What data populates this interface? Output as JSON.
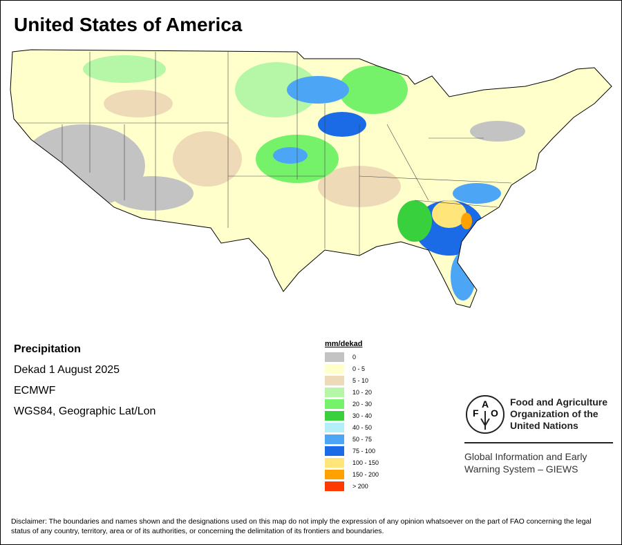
{
  "title": "United States of America",
  "info": {
    "variable": "Precipitation",
    "period": "Dekad 1 August 2025",
    "model": "ECMWF",
    "projection": "WGS84, Geographic Lat/Lon"
  },
  "legend": {
    "title": "mm/dekad",
    "items": [
      {
        "label": "0",
        "color": "#c3c3c3"
      },
      {
        "label": "0 - 5",
        "color": "#ffffcc"
      },
      {
        "label": "5 - 10",
        "color": "#efdab8"
      },
      {
        "label": "10 - 20",
        "color": "#b5f7a6"
      },
      {
        "label": "20 - 30",
        "color": "#75f26a"
      },
      {
        "label": "30 - 40",
        "color": "#38d13d"
      },
      {
        "label": "40 - 50",
        "color": "#b3eef9"
      },
      {
        "label": "50 - 75",
        "color": "#4da6f5"
      },
      {
        "label": "75 - 100",
        "color": "#1c6be6"
      },
      {
        "label": "100 - 150",
        "color": "#ffe57a"
      },
      {
        "label": "150 - 200",
        "color": "#ffa200"
      },
      {
        "label": "> 200",
        "color": "#ff3a00"
      }
    ]
  },
  "fao": {
    "logo_text": "FAO FIAT PANIS",
    "line1": "Food and Agriculture",
    "line2": "Organization of the",
    "line3": "United Nations",
    "giews1": "Global Information and Early",
    "giews2": "Warning System – GIEWS"
  },
  "disclaimer": "Disclaimer: The boundaries and names shown and the designations used on this map do not imply the expression of any opinion whatsoever on the part of FAO concerning the legal status of any country, territory, area or of its authorities, or concerning the delimitation of its frontiers and boundaries."
}
